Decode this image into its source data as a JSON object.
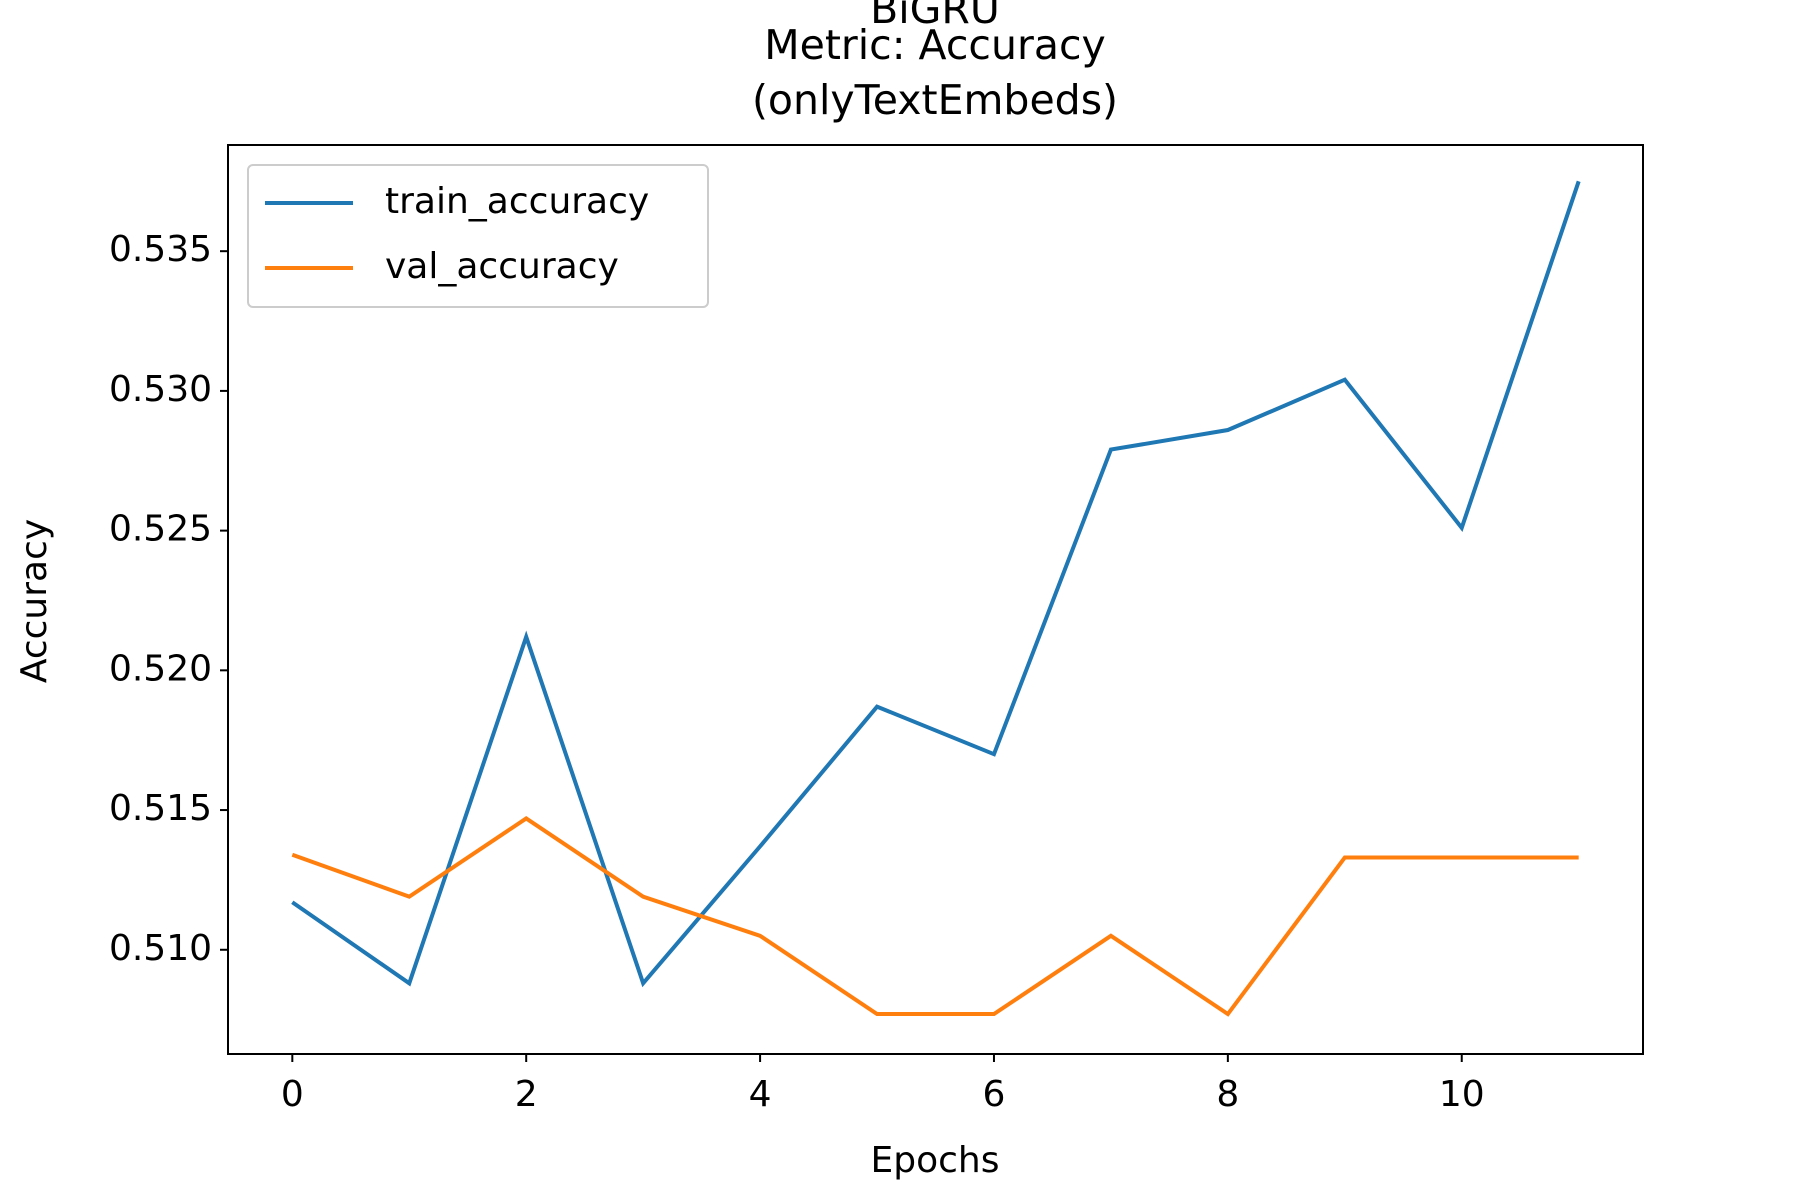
{
  "chart_data": {
    "type": "line",
    "title": [
      "BiGRU",
      "Metric: Accuracy",
      "(onlyTextEmbeds)"
    ],
    "xlabel": "Epochs",
    "ylabel": "Accuracy",
    "x": [
      0,
      1,
      2,
      3,
      4,
      5,
      6,
      7,
      8,
      9,
      10,
      11
    ],
    "series": [
      {
        "name": "train_accuracy",
        "color": "#1f77b4",
        "values": [
          0.5117,
          0.5088,
          0.5212,
          0.5088,
          0.5137,
          0.5187,
          0.517,
          0.5279,
          0.5286,
          0.5304,
          0.5251,
          0.5375
        ]
      },
      {
        "name": "val_accuracy",
        "color": "#ff7f0e",
        "values": [
          0.5134,
          0.5119,
          0.5147,
          0.5119,
          0.5105,
          0.5077,
          0.5077,
          0.5105,
          0.5077,
          0.5133,
          0.5133,
          0.5133
        ]
      }
    ],
    "xlim": [
      -0.55,
      11.55
    ],
    "xticks": [
      0,
      2,
      4,
      6,
      8,
      10
    ],
    "ylim": [
      0.50627,
      0.5388
    ],
    "yticks": [
      {
        "value": 0.51,
        "label": "0.510"
      },
      0.515,
      {
        "value": 0.52,
        "label": "0.520"
      },
      0.525,
      {
        "value": 0.53,
        "label": "0.530"
      },
      0.535
    ],
    "legend": "upper left"
  }
}
